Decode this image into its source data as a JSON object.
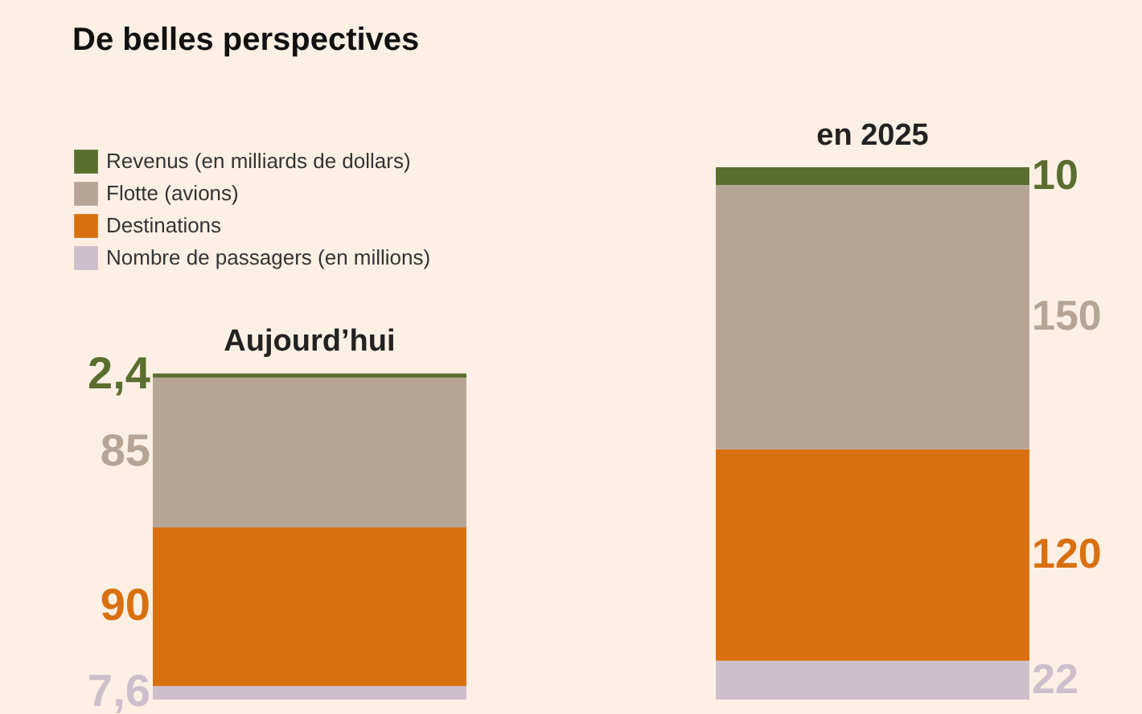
{
  "chart_data": {
    "type": "bar",
    "title": "De belles perspectives",
    "stacked": true,
    "legend": "top left",
    "data_labels": true,
    "categories": [
      "Aujourd’hui",
      "en 2025"
    ],
    "series": [
      {
        "name": "Nombre de passagers (en millions)",
        "color": "#cdbfcc",
        "values": [
          7.6,
          22
        ],
        "value_labels": [
          "7,6",
          "22"
        ]
      },
      {
        "name": "Destinations",
        "color": "#d9700f",
        "values": [
          90,
          120
        ],
        "value_labels": [
          "90",
          "120"
        ]
      },
      {
        "name": "Flotte (avions)",
        "color": "#b6a595",
        "values": [
          85,
          150
        ],
        "value_labels": [
          "85",
          "150"
        ]
      },
      {
        "name": "Revenus (en milliards de dollars)",
        "color": "#5a6e2f",
        "values": [
          2.4,
          10
        ],
        "value_labels": [
          "2,4",
          "10"
        ]
      }
    ]
  }
}
